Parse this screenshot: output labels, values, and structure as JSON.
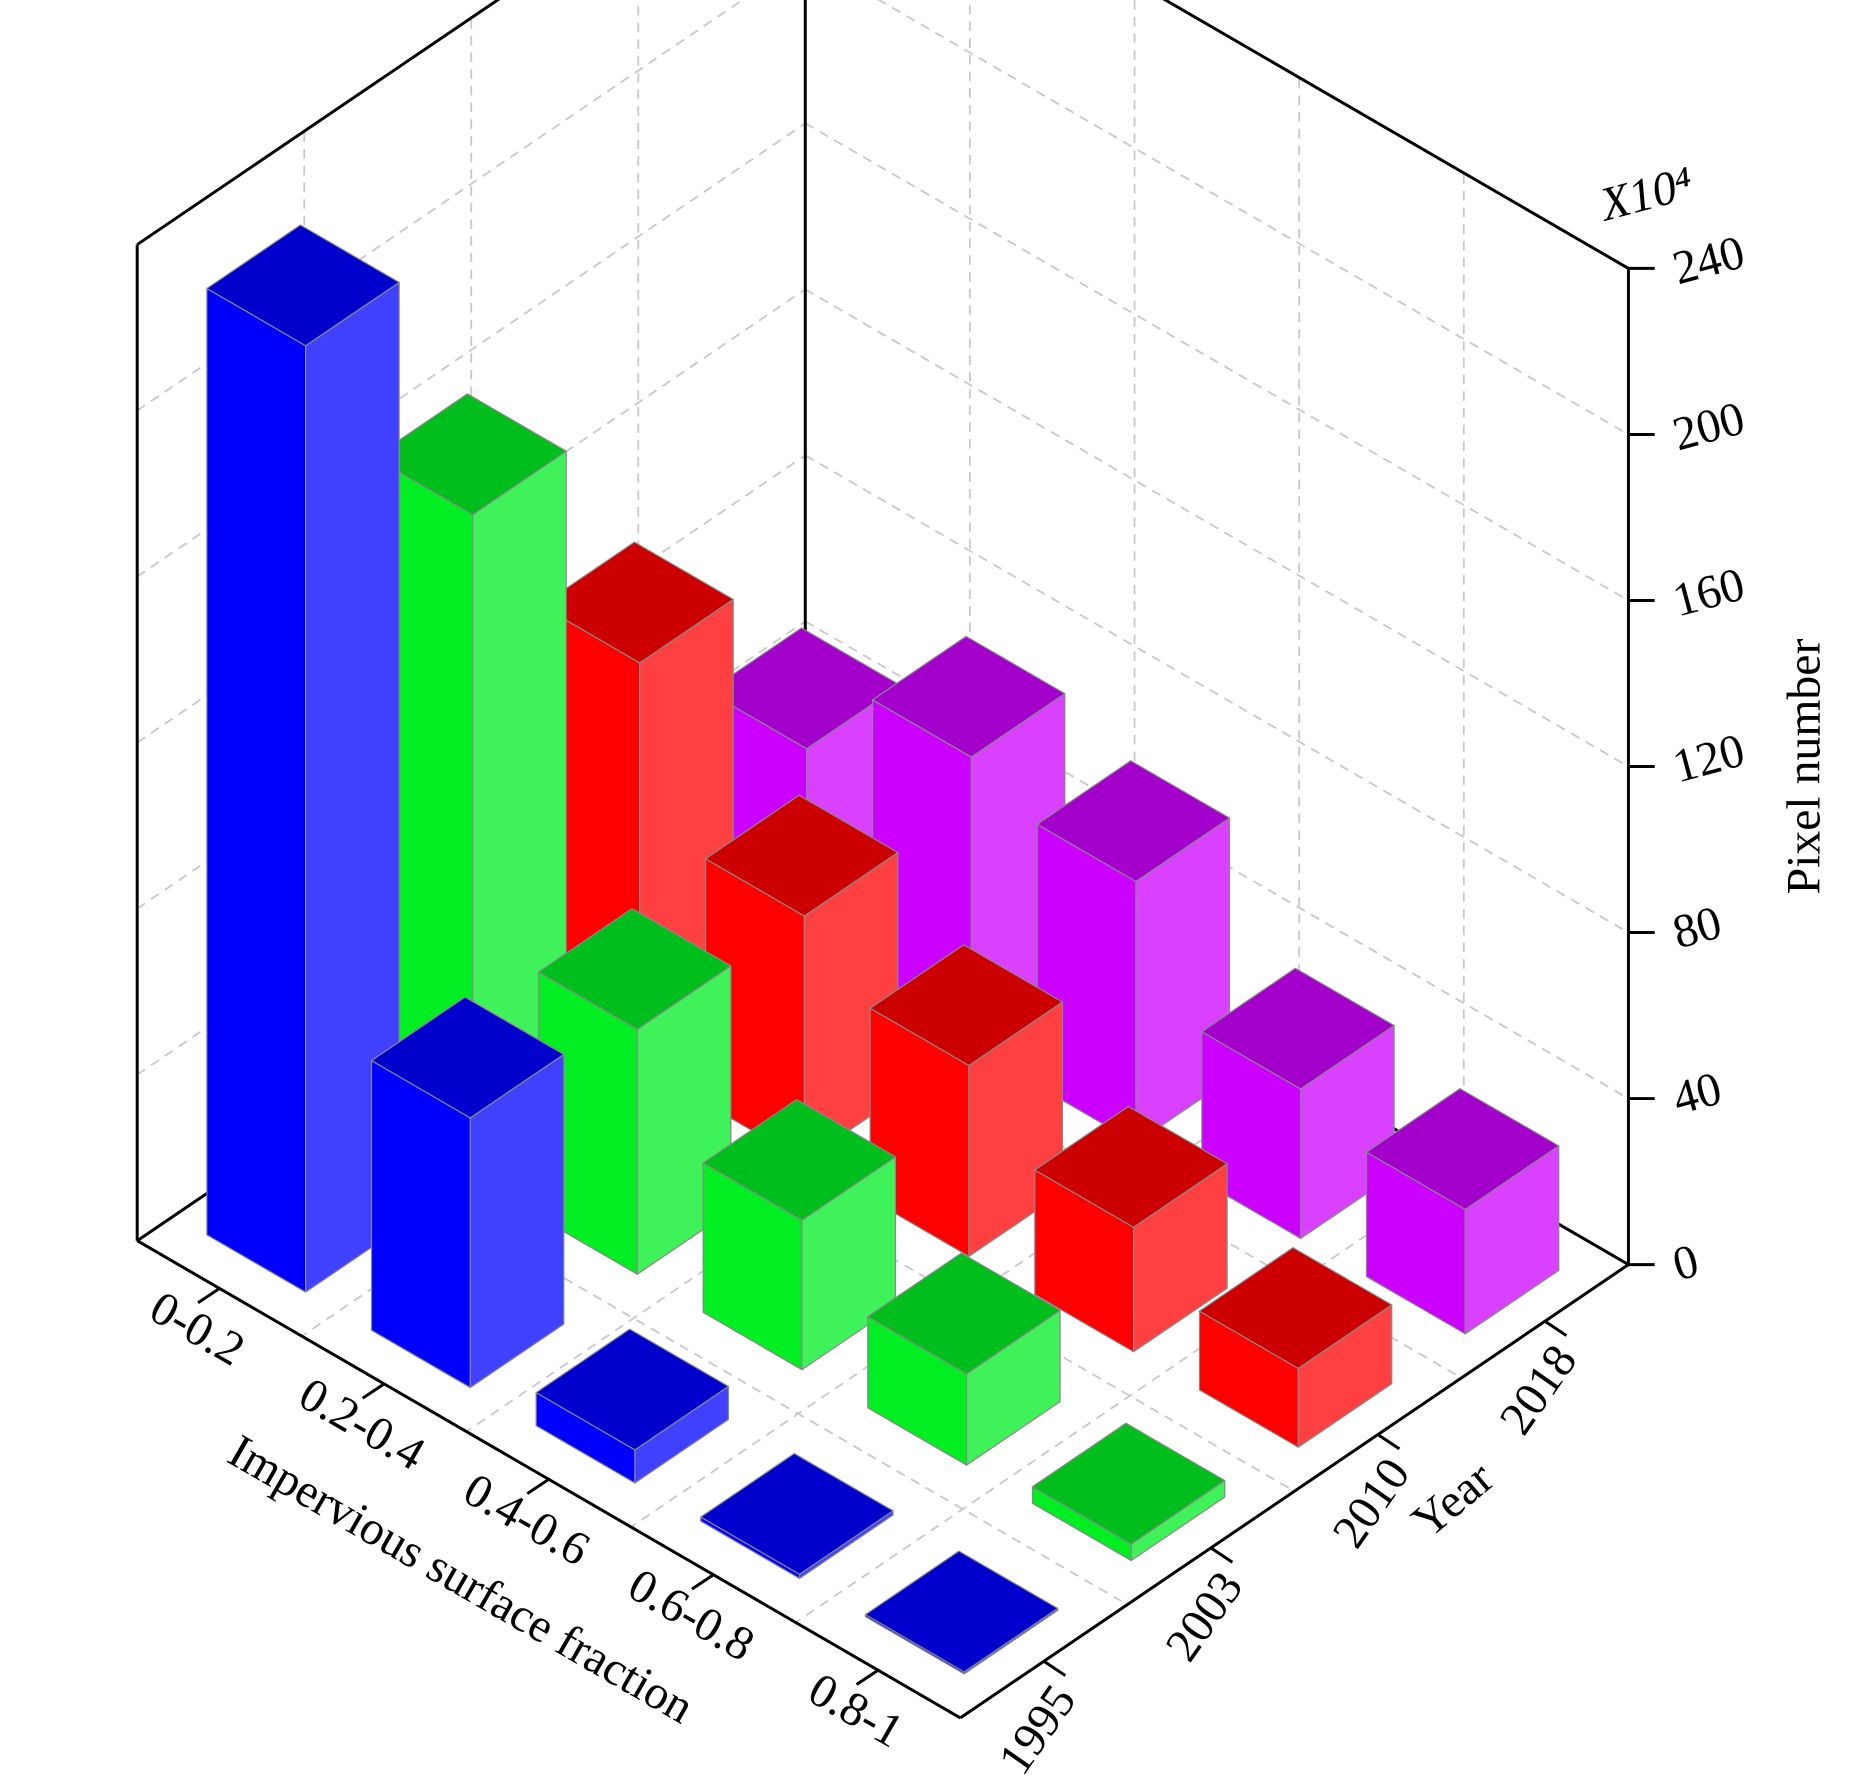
{
  "chart_data": {
    "type": "bar3d",
    "categories": [
      "0-0.2",
      "0.2-0.4",
      "0.4-0.6",
      "0.6-0.8",
      "0.8-1"
    ],
    "series": [
      {
        "name": "1995",
        "color": "#0000ff",
        "values": [
          228,
          65,
          8,
          1,
          0.5
        ]
      },
      {
        "name": "2003",
        "color": "#00ee22",
        "values": [
          160,
          59,
          36,
          22,
          4
        ]
      },
      {
        "name": "2010",
        "color": "#ff0000",
        "values": [
          97,
          59,
          46,
          30,
          19
        ]
      },
      {
        "name": "2018",
        "color": "#cc00ff",
        "values": [
          49,
          70,
          63,
          36,
          30
        ]
      }
    ],
    "xlabel": "Impervious surface fraction",
    "zlabel": "Year",
    "ylabel": "Pixel number",
    "y_multiplier": "X10⁴",
    "ylim": [
      0,
      240
    ],
    "yticks": [
      0,
      40,
      80,
      120,
      160,
      200,
      240
    ],
    "grid": true
  }
}
